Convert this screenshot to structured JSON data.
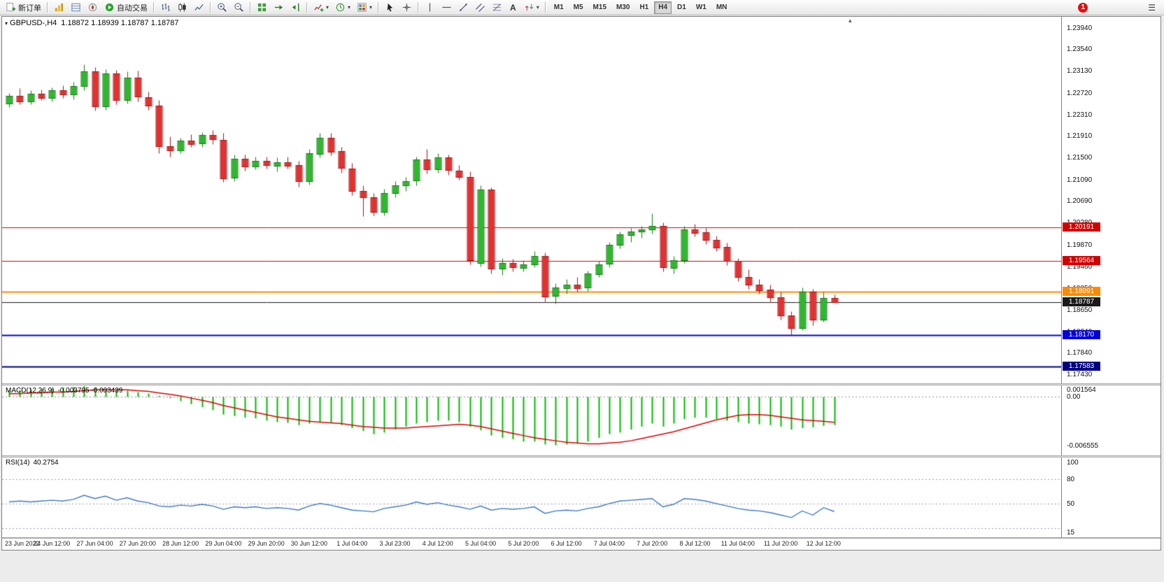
{
  "icons": {
    "caret": "▾",
    "menu": "☰",
    "collapse_arrow": "▾",
    "shift_marker": "▴",
    "text_tool": "A"
  },
  "toolbar": {
    "new_order": "新订单",
    "auto_trading": "自动交易",
    "timeframes": [
      "M1",
      "M5",
      "M15",
      "M30",
      "H1",
      "H4",
      "D1",
      "W1",
      "MN"
    ],
    "active_timeframe": "H4",
    "notification_count": "1"
  },
  "chart": {
    "title_symbol": "GBPUSD-,H4",
    "title_ohlc": "1.18872 1.18939 1.18787 1.18787",
    "price_axis_ticks": [
      "1.23940",
      "1.23540",
      "1.23130",
      "1.22720",
      "1.22310",
      "1.21910",
      "1.21500",
      "1.21090",
      "1.20690",
      "1.20280",
      "1.19870",
      "1.19460",
      "1.19050",
      "1.18650",
      "1.18240",
      "1.17840",
      "1.17430"
    ],
    "levels": [
      {
        "price": 1.20191,
        "label": "1.20191",
        "color": "#d40000",
        "line_width": 1,
        "current": false
      },
      {
        "price": 1.19564,
        "label": "1.19564",
        "color": "#d40000",
        "line_width": 1,
        "current": false
      },
      {
        "price": 1.18991,
        "label": "1.18991",
        "color": "#ff8a00",
        "line_width": 2,
        "current": false
      },
      {
        "price": 1.18787,
        "label": "1.18787",
        "color": "#1a1a1a",
        "line_width": 1,
        "current": true
      },
      {
        "price": 1.1817,
        "label": "1.18170",
        "color": "#0000d8",
        "line_width": 2,
        "current": false
      },
      {
        "price": 1.17583,
        "label": "1.17583",
        "color": "#000080",
        "line_width": 2,
        "current": false
      }
    ],
    "time_axis": [
      "23 Jun 2022",
      "24 Jun 12:00",
      "27 Jun 04:00",
      "27 Jun 20:00",
      "28 Jun 12:00",
      "29 Jun 04:00",
      "29 Jun 20:00",
      "30 Jun 12:00",
      "1 Jul 04:00",
      "3 Jul 23:00",
      "4 Jul 12:00",
      "5 Jul 04:00",
      "5 Jul 20:00",
      "6 Jul 12:00",
      "7 Jul 04:00",
      "7 Jul 20:00",
      "8 Jul 12:00",
      "11 Jul 04:00",
      "11 Jul 20:00",
      "12 Jul 12:00"
    ]
  },
  "macd": {
    "label": "MACD(12,26,9)",
    "values_text": "-0.003795 -0.003439",
    "axis": [
      {
        "text": "0.001564",
        "value": 0.001564
      },
      {
        "text": "0.00",
        "value": 0
      },
      {
        "text": "-0.006555",
        "value": -0.006555
      }
    ]
  },
  "rsi": {
    "label": "RSI(14)",
    "value_text": "40.2754",
    "axis": [
      {
        "text": "100",
        "value": 100
      },
      {
        "text": "80",
        "value": 80
      },
      {
        "text": "50",
        "value": 50
      },
      {
        "text": "15",
        "value": 15
      }
    ],
    "level_lines": [
      80,
      50,
      20
    ]
  },
  "chart_data": {
    "type": "candlestick",
    "symbol": "GBPUSD-",
    "period": "H4",
    "x_label_every": 4,
    "up_color": "#2eb82e",
    "up_edge": "#157a15",
    "down_color": "#e53030",
    "down_edge": "#a51515",
    "macd_color": "#00bb00",
    "signal_color": "#dd0000",
    "rsi_color": "#3c78c8",
    "price_range": {
      "max": 1.2404,
      "min": 1.1737
    },
    "macd_range": {
      "max": 0.001564,
      "min": -0.006555
    },
    "rsi_range": {
      "max": 100,
      "min": 15
    },
    "candles": [
      [
        1.2252,
        1.2272,
        1.2245,
        1.2266
      ],
      [
        1.2266,
        1.228,
        1.225,
        1.2256
      ],
      [
        1.2256,
        1.2276,
        1.225,
        1.227
      ],
      [
        1.227,
        1.2278,
        1.2258,
        1.2262
      ],
      [
        1.2262,
        1.2282,
        1.2256,
        1.2276
      ],
      [
        1.2276,
        1.2286,
        1.2262,
        1.2268
      ],
      [
        1.2268,
        1.2292,
        1.226,
        1.2284
      ],
      [
        1.2284,
        1.2325,
        1.2276,
        1.2312
      ],
      [
        1.2312,
        1.232,
        1.2238,
        1.2246
      ],
      [
        1.2246,
        1.2316,
        1.224,
        1.2308
      ],
      [
        1.2308,
        1.2315,
        1.225,
        1.2258
      ],
      [
        1.2258,
        1.2312,
        1.2252,
        1.23
      ],
      [
        1.23,
        1.2313,
        1.2256,
        1.2264
      ],
      [
        1.2264,
        1.2274,
        1.224,
        1.2248
      ],
      [
        1.2248,
        1.2258,
        1.2158,
        1.2172
      ],
      [
        1.2172,
        1.219,
        1.2152,
        1.2164
      ],
      [
        1.2164,
        1.2188,
        1.2158,
        1.2182
      ],
      [
        1.2182,
        1.2194,
        1.217,
        1.2176
      ],
      [
        1.2176,
        1.2198,
        1.217,
        1.2192
      ],
      [
        1.2192,
        1.2202,
        1.2176,
        1.2184
      ],
      [
        1.2184,
        1.2196,
        1.2104,
        1.2112
      ],
      [
        1.2112,
        1.2156,
        1.2106,
        1.2148
      ],
      [
        1.2148,
        1.2156,
        1.2126,
        1.2134
      ],
      [
        1.2134,
        1.2152,
        1.2128,
        1.2144
      ],
      [
        1.2144,
        1.2152,
        1.213,
        1.2136
      ],
      [
        1.2136,
        1.215,
        1.2124,
        1.2142
      ],
      [
        1.2142,
        1.2152,
        1.213,
        1.2136
      ],
      [
        1.2136,
        1.2144,
        1.2096,
        1.2106
      ],
      [
        1.2106,
        1.2166,
        1.21,
        1.2158
      ],
      [
        1.2158,
        1.2196,
        1.215,
        1.2188
      ],
      [
        1.2188,
        1.2196,
        1.2154,
        1.2162
      ],
      [
        1.2162,
        1.217,
        1.2122,
        1.213
      ],
      [
        1.213,
        1.214,
        1.208,
        1.2088
      ],
      [
        1.2088,
        1.2098,
        1.204,
        1.2076
      ],
      [
        1.2076,
        1.2084,
        1.2042,
        1.2048
      ],
      [
        1.2048,
        1.2092,
        1.2042,
        1.2084
      ],
      [
        1.2084,
        1.2106,
        1.2076,
        1.2098
      ],
      [
        1.2098,
        1.2114,
        1.2088,
        1.2106
      ],
      [
        1.2106,
        1.2152,
        1.2098,
        1.2146
      ],
      [
        1.2146,
        1.2166,
        1.212,
        1.2128
      ],
      [
        1.2128,
        1.2158,
        1.2122,
        1.215
      ],
      [
        1.215,
        1.2156,
        1.2118,
        1.2126
      ],
      [
        1.2126,
        1.2136,
        1.2108,
        1.2114
      ],
      [
        1.2114,
        1.2124,
        1.195,
        1.1958
      ],
      [
        1.1952,
        1.2098,
        1.1946,
        1.209
      ],
      [
        1.209,
        1.2094,
        1.1932,
        1.1941
      ],
      [
        1.1941,
        1.1962,
        1.193,
        1.1952
      ],
      [
        1.1952,
        1.196,
        1.1936,
        1.1944
      ],
      [
        1.1944,
        1.1958,
        1.1936,
        1.195
      ],
      [
        1.195,
        1.1974,
        1.1944,
        1.1966
      ],
      [
        1.1966,
        1.1972,
        1.188,
        1.189
      ],
      [
        1.189,
        1.1914,
        1.1876,
        1.1906
      ],
      [
        1.1906,
        1.1922,
        1.1894,
        1.1912
      ],
      [
        1.1912,
        1.1926,
        1.1898,
        1.1906
      ],
      [
        1.1906,
        1.1938,
        1.19,
        1.1932
      ],
      [
        1.1932,
        1.1956,
        1.1926,
        1.195
      ],
      [
        1.195,
        1.1992,
        1.1944,
        1.1986
      ],
      [
        1.1986,
        1.2012,
        1.198,
        1.2006
      ],
      [
        1.2006,
        1.2018,
        1.1992,
        1.2012
      ],
      [
        1.2012,
        1.2022,
        1.2,
        1.2016
      ],
      [
        1.2016,
        1.2046,
        1.2008,
        1.2022
      ],
      [
        1.2022,
        1.2028,
        1.1936,
        1.1944
      ],
      [
        1.1944,
        1.1966,
        1.1932,
        1.1958
      ],
      [
        1.1958,
        1.2022,
        1.1952,
        1.2016
      ],
      [
        1.2016,
        1.2026,
        1.2002,
        1.201
      ],
      [
        1.201,
        1.2018,
        1.1988,
        1.1996
      ],
      [
        1.1996,
        1.2004,
        1.1974,
        1.1982
      ],
      [
        1.1982,
        1.199,
        1.1948,
        1.1956
      ],
      [
        1.1956,
        1.1962,
        1.1918,
        1.1926
      ],
      [
        1.1926,
        1.194,
        1.1904,
        1.1912
      ],
      [
        1.1912,
        1.1922,
        1.1894,
        1.1902
      ],
      [
        1.1902,
        1.1912,
        1.188,
        1.1888
      ],
      [
        1.1888,
        1.1898,
        1.1846,
        1.1854
      ],
      [
        1.1854,
        1.1862,
        1.1817,
        1.183
      ],
      [
        1.183,
        1.1906,
        1.1826,
        1.1898
      ],
      [
        1.1898,
        1.1904,
        1.1836,
        1.1846
      ],
      [
        1.1846,
        1.1898,
        1.1842,
        1.1887
      ],
      [
        1.18872,
        1.18939,
        1.18787,
        1.18787
      ]
    ],
    "macd_histogram": [
      0.0008,
      0.0009,
      0.001,
      0.001,
      0.0011,
      0.0012,
      0.0013,
      0.0014,
      0.0012,
      0.001,
      0.0009,
      0.0008,
      0.0006,
      0.0004,
      0.0001,
      -0.0002,
      -0.0006,
      -0.001,
      -0.0014,
      -0.0018,
      -0.0024,
      -0.0026,
      -0.0028,
      -0.0029,
      -0.0032,
      -0.0034,
      -0.0035,
      -0.0038,
      -0.0036,
      -0.0034,
      -0.0035,
      -0.0038,
      -0.0042,
      -0.0046,
      -0.005,
      -0.0048,
      -0.0044,
      -0.004,
      -0.0036,
      -0.0034,
      -0.0032,
      -0.0032,
      -0.0034,
      -0.004,
      -0.0045,
      -0.0052,
      -0.0055,
      -0.0057,
      -0.006,
      -0.006,
      -0.0064,
      -0.0065,
      -0.0064,
      -0.0063,
      -0.006,
      -0.0055,
      -0.005,
      -0.0048,
      -0.0044,
      -0.004,
      -0.0036,
      -0.004,
      -0.0036,
      -0.003,
      -0.0028,
      -0.0028,
      -0.003,
      -0.0032,
      -0.0034,
      -0.0036,
      -0.0037,
      -0.0038,
      -0.004,
      -0.0044,
      -0.0042,
      -0.0041,
      -0.0039,
      -0.003795
    ],
    "macd_signal": [
      0.0004,
      0.0004,
      0.0005,
      0.0005,
      0.0006,
      0.0006,
      0.0007,
      0.0008,
      0.0009,
      0.0009,
      0.0009,
      0.0009,
      0.0008,
      0.0007,
      0.0005,
      0.0003,
      0.0001,
      -0.0002,
      -0.0005,
      -0.0008,
      -0.0012,
      -0.0015,
      -0.0018,
      -0.0021,
      -0.0024,
      -0.0027,
      -0.0029,
      -0.0031,
      -0.0033,
      -0.0034,
      -0.0035,
      -0.0036,
      -0.0038,
      -0.004,
      -0.0041,
      -0.0042,
      -0.0042,
      -0.0042,
      -0.0041,
      -0.004,
      -0.0039,
      -0.0038,
      -0.0037,
      -0.0038,
      -0.004,
      -0.0043,
      -0.0046,
      -0.0049,
      -0.0052,
      -0.0055,
      -0.0057,
      -0.0059,
      -0.0061,
      -0.0062,
      -0.0063,
      -0.0063,
      -0.0062,
      -0.0061,
      -0.0059,
      -0.0056,
      -0.0053,
      -0.005,
      -0.0047,
      -0.0043,
      -0.0039,
      -0.0035,
      -0.0031,
      -0.0028,
      -0.0025,
      -0.0024,
      -0.0024,
      -0.0025,
      -0.0027,
      -0.0029,
      -0.0031,
      -0.0032,
      -0.0033,
      -0.003439
    ],
    "rsi": [
      52,
      53,
      52,
      53,
      54,
      53,
      55,
      60,
      56,
      59,
      54,
      57,
      53,
      51,
      47,
      46,
      48,
      47,
      49,
      47,
      43,
      46,
      45,
      46,
      44,
      45,
      44,
      42,
      47,
      50,
      48,
      45,
      42,
      41,
      40,
      44,
      46,
      48,
      52,
      49,
      51,
      48,
      46,
      43,
      47,
      42,
      44,
      43,
      44,
      46,
      38,
      41,
      42,
      41,
      44,
      46,
      50,
      53,
      54,
      55,
      56,
      46,
      49,
      56,
      55,
      53,
      50,
      47,
      44,
      42,
      41,
      39,
      36,
      33,
      41,
      36,
      45,
      40.2754
    ]
  }
}
